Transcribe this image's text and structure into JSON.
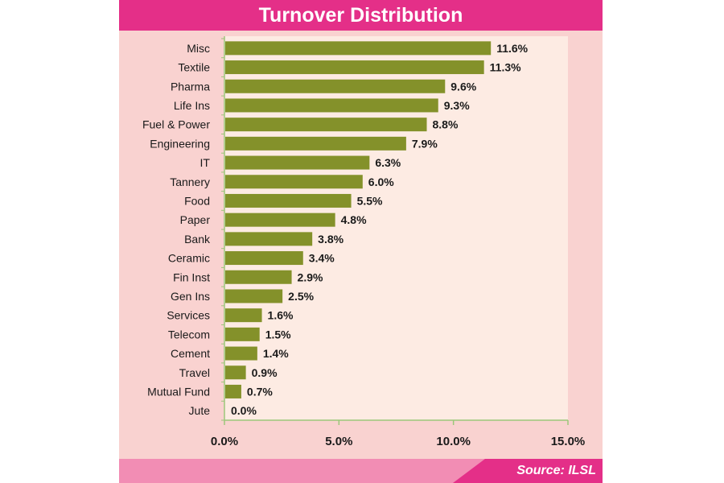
{
  "chart_data": {
    "type": "bar",
    "orientation": "horizontal",
    "title": "Turnover Distribution",
    "categories": [
      "Misc",
      "Textile",
      "Pharma",
      "Life Ins",
      "Fuel & Power",
      "Engineering",
      "IT",
      "Tannery",
      "Food",
      "Paper",
      "Bank",
      "Ceramic",
      "Fin Inst",
      "Gen Ins",
      "Services",
      "Telecom",
      "Cement",
      "Travel",
      "Mutual Fund",
      "Jute"
    ],
    "values": [
      11.6,
      11.3,
      9.6,
      9.3,
      8.8,
      7.9,
      6.3,
      6.0,
      5.5,
      4.8,
      3.8,
      3.4,
      2.9,
      2.5,
      1.6,
      1.5,
      1.4,
      0.9,
      0.7,
      0.0
    ],
    "data_labels": [
      "11.6%",
      "11.3%",
      "9.6%",
      "9.3%",
      "8.8%",
      "7.9%",
      "6.3%",
      "6.0%",
      "5.5%",
      "4.8%",
      "3.8%",
      "3.4%",
      "2.9%",
      "2.5%",
      "1.6%",
      "1.5%",
      "1.4%",
      "0.9%",
      "0.7%",
      "0.0%"
    ],
    "xlim": [
      0,
      15
    ],
    "xticks": [
      0,
      5,
      10,
      15
    ],
    "xtick_labels": [
      "0.0%",
      "5.0%",
      "10.0%",
      "15.0%"
    ],
    "xlabel": "",
    "ylabel": "",
    "grid": false,
    "legend": "none",
    "source": "Source: ILSL",
    "colors": {
      "bar": "#84912a",
      "title_bar": "#e42f88",
      "background": "#f9d2d0",
      "plot_background": "#fdebe3",
      "axis": "#9cc77a",
      "footer": "#f28db4"
    }
  }
}
